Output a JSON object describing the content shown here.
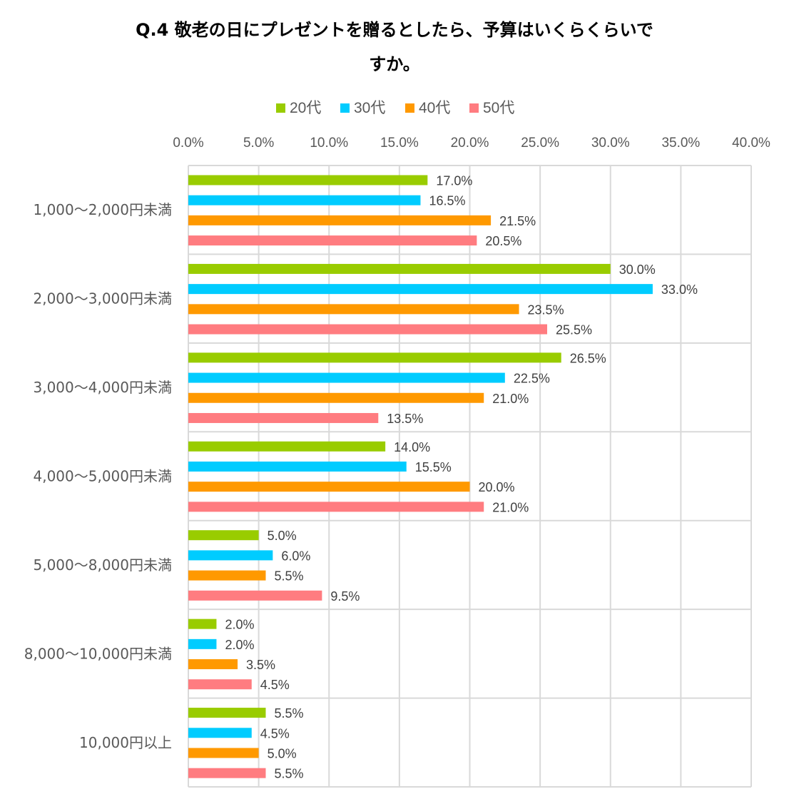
{
  "chart_data": {
    "type": "bar",
    "orientation": "horizontal",
    "title_line1": "Q.4 敬老の日にプレゼントを贈るとしたら、予算はいくらくらいで",
    "title_line2": "すか。",
    "xlim": [
      0,
      40
    ],
    "xticks": [
      0,
      5,
      10,
      15,
      20,
      25,
      30,
      35,
      40
    ],
    "xtick_labels": [
      "0.0%",
      "5.0%",
      "10.0%",
      "15.0%",
      "20.0%",
      "25.0%",
      "30.0%",
      "35.0%",
      "40.0%"
    ],
    "legend_position": "top",
    "grid": true,
    "categories": [
      "1,000～2,000円未満",
      "2,000～3,000円未満",
      "3,000～4,000円未満",
      "4,000～5,000円未満",
      "5,000～8,000円未満",
      "8,000～10,000円未満",
      "10,000円以上"
    ],
    "series": [
      {
        "name": "20代",
        "color": "#99cc00",
        "values": [
          17.0,
          30.0,
          26.5,
          14.0,
          5.0,
          2.0,
          5.5
        ],
        "labels": [
          "17.0%",
          "30.0%",
          "26.5%",
          "14.0%",
          "5.0%",
          "2.0%",
          "5.5%"
        ]
      },
      {
        "name": "30代",
        "color": "#00ccff",
        "values": [
          16.5,
          33.0,
          22.5,
          15.5,
          6.0,
          2.0,
          4.5
        ],
        "labels": [
          "16.5%",
          "33.0%",
          "22.5%",
          "15.5%",
          "6.0%",
          "2.0%",
          "4.5%"
        ]
      },
      {
        "name": "40代",
        "color": "#ff9900",
        "values": [
          21.5,
          23.5,
          21.0,
          20.0,
          5.5,
          3.5,
          5.0
        ],
        "labels": [
          "21.5%",
          "23.5%",
          "21.0%",
          "20.0%",
          "5.5%",
          "3.5%",
          "5.0%"
        ]
      },
      {
        "name": "50代",
        "color": "#ff7c80",
        "values": [
          20.5,
          25.5,
          13.5,
          21.0,
          9.5,
          4.5,
          5.5
        ],
        "labels": [
          "20.5%",
          "25.5%",
          "13.5%",
          "21.0%",
          "9.5%",
          "4.5%",
          "5.5%"
        ]
      }
    ]
  }
}
